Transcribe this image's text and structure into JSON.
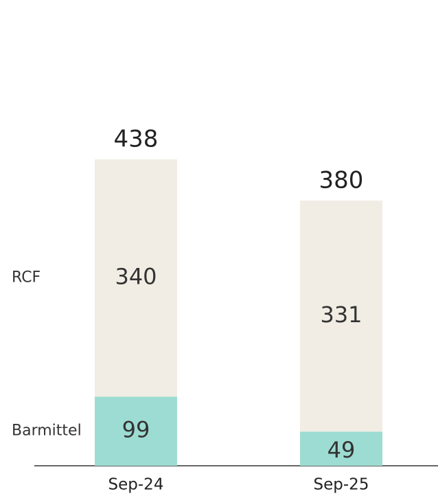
{
  "chart_data": {
    "type": "stacked_bar",
    "categories": [
      "Sep-24",
      "Sep-25"
    ],
    "series": [
      {
        "name": "Barmittel",
        "color": "#9ddcd2",
        "values": [
          99,
          49
        ]
      },
      {
        "name": "RCF",
        "color": "#f2ede4",
        "values": [
          340,
          331
        ]
      }
    ],
    "totals": [
      438,
      380
    ]
  }
}
